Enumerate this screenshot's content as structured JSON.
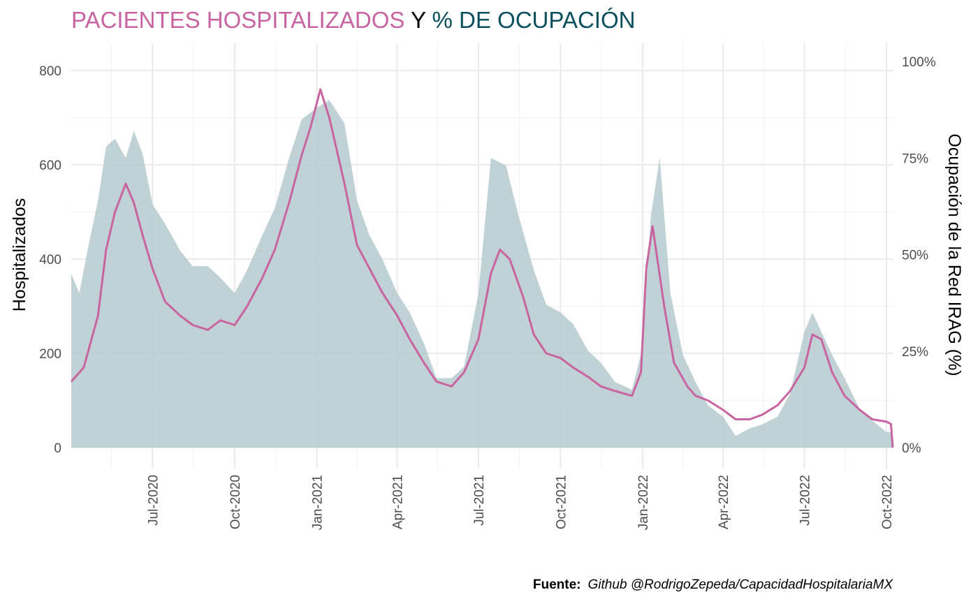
{
  "title": {
    "part1": "PACIENTES HOSPITALIZADOS",
    "part2": " Y ",
    "part3": "% DE OCUPACIÓN",
    "color1": "#c865a1",
    "color2": "#000000",
    "color3": "#0a4f5c"
  },
  "caption": {
    "label": "Fuente:",
    "text": "Github @RodrigoZepeda/CapacidadHospitalariaMX"
  },
  "chart_data": {
    "type": "line",
    "background_type": "area",
    "ylabel": "Hospitalizados",
    "y2label": "Ocupación de la Red IRAG (%)",
    "ylim": [
      0,
      800
    ],
    "y2lim": [
      0,
      1
    ],
    "yticks": [
      0,
      200,
      400,
      600,
      800
    ],
    "y2ticks": [
      "0%",
      "25%",
      "50%",
      "75%",
      "100%"
    ],
    "xlim": [
      "2020-04-01",
      "2022-10-08"
    ],
    "xticks": [
      "2020-07-01",
      "2020-10-01",
      "2021-01-01",
      "2021-04-01",
      "2021-07-01",
      "2021-10-01",
      "2022-01-01",
      "2022-04-01",
      "2022-07-01",
      "2022-10-01"
    ],
    "xtick_labels": [
      "Jul-2020",
      "Oct-2020",
      "Jan-2021",
      "Apr-2021",
      "Jul-2021",
      "Oct-2021",
      "Jan-2022",
      "Apr-2022",
      "Jul-2022",
      "Oct-2022"
    ],
    "grid": true,
    "legend": "none",
    "line_color": "#c865a1",
    "area_color": "#b5cacf",
    "series": [
      {
        "name": "Hospitalizados",
        "axis": "left",
        "x": [
          "2020-04-01",
          "2020-04-15",
          "2020-05-01",
          "2020-05-10",
          "2020-05-20",
          "2020-06-01",
          "2020-06-10",
          "2020-06-20",
          "2020-07-01",
          "2020-07-15",
          "2020-08-01",
          "2020-08-15",
          "2020-09-01",
          "2020-09-15",
          "2020-10-01",
          "2020-10-15",
          "2020-11-01",
          "2020-11-15",
          "2020-12-01",
          "2020-12-15",
          "2020-12-25",
          "2021-01-05",
          "2021-01-15",
          "2021-02-01",
          "2021-02-15",
          "2021-03-01",
          "2021-03-15",
          "2021-04-01",
          "2021-04-15",
          "2021-05-01",
          "2021-05-15",
          "2021-06-01",
          "2021-06-15",
          "2021-07-01",
          "2021-07-15",
          "2021-07-25",
          "2021-08-05",
          "2021-08-20",
          "2021-09-01",
          "2021-09-15",
          "2021-10-01",
          "2021-10-15",
          "2021-11-01",
          "2021-11-15",
          "2021-12-01",
          "2021-12-20",
          "2021-12-30",
          "2022-01-05",
          "2022-01-12",
          "2022-01-25",
          "2022-02-05",
          "2022-02-20",
          "2022-03-01",
          "2022-03-15",
          "2022-04-01",
          "2022-04-15",
          "2022-05-01",
          "2022-05-15",
          "2022-06-01",
          "2022-06-15",
          "2022-07-01",
          "2022-07-10",
          "2022-07-20",
          "2022-08-01",
          "2022-08-15",
          "2022-09-01",
          "2022-09-15",
          "2022-10-01",
          "2022-10-06",
          "2022-10-08"
        ],
        "values": [
          140,
          170,
          280,
          420,
          500,
          560,
          520,
          450,
          380,
          310,
          280,
          260,
          250,
          270,
          260,
          300,
          360,
          420,
          520,
          620,
          680,
          760,
          700,
          560,
          430,
          380,
          330,
          280,
          230,
          180,
          140,
          130,
          160,
          230,
          370,
          420,
          400,
          320,
          240,
          200,
          190,
          170,
          150,
          130,
          120,
          110,
          160,
          380,
          470,
          300,
          180,
          130,
          110,
          100,
          80,
          60,
          60,
          70,
          90,
          120,
          170,
          240,
          230,
          160,
          110,
          80,
          60,
          55,
          50,
          0
        ]
      },
      {
        "name": "Ocupación de la Red IRAG",
        "axis": "right",
        "x": [
          "2020-04-01",
          "2020-04-10",
          "2020-04-20",
          "2020-05-01",
          "2020-05-10",
          "2020-05-20",
          "2020-06-01",
          "2020-06-10",
          "2020-06-20",
          "2020-07-01",
          "2020-07-15",
          "2020-08-01",
          "2020-08-15",
          "2020-09-01",
          "2020-09-15",
          "2020-10-01",
          "2020-10-15",
          "2020-11-01",
          "2020-11-15",
          "2020-12-01",
          "2020-12-15",
          "2021-01-01",
          "2021-01-15",
          "2021-02-01",
          "2021-02-15",
          "2021-03-01",
          "2021-03-15",
          "2021-04-01",
          "2021-04-15",
          "2021-05-01",
          "2021-05-15",
          "2021-06-01",
          "2021-06-15",
          "2021-07-01",
          "2021-07-15",
          "2021-08-01",
          "2021-08-15",
          "2021-09-01",
          "2021-09-15",
          "2021-10-01",
          "2021-10-15",
          "2021-11-01",
          "2021-11-15",
          "2021-12-01",
          "2021-12-20",
          "2022-01-01",
          "2022-01-10",
          "2022-01-20",
          "2022-02-01",
          "2022-02-15",
          "2022-03-01",
          "2022-03-15",
          "2022-04-01",
          "2022-04-15",
          "2022-05-01",
          "2022-05-15",
          "2022-06-01",
          "2022-06-15",
          "2022-07-01",
          "2022-07-10",
          "2022-07-20",
          "2022-08-01",
          "2022-08-15",
          "2022-09-01",
          "2022-09-15",
          "2022-10-01",
          "2022-10-07"
        ],
        "values": [
          0.45,
          0.4,
          0.52,
          0.64,
          0.78,
          0.8,
          0.75,
          0.82,
          0.76,
          0.63,
          0.58,
          0.51,
          0.47,
          0.47,
          0.44,
          0.4,
          0.46,
          0.55,
          0.62,
          0.75,
          0.85,
          0.88,
          0.9,
          0.84,
          0.64,
          0.55,
          0.49,
          0.4,
          0.35,
          0.27,
          0.18,
          0.18,
          0.21,
          0.4,
          0.75,
          0.73,
          0.6,
          0.46,
          0.37,
          0.35,
          0.32,
          0.25,
          0.22,
          0.17,
          0.15,
          0.26,
          0.6,
          0.75,
          0.4,
          0.24,
          0.17,
          0.11,
          0.08,
          0.03,
          0.05,
          0.06,
          0.08,
          0.14,
          0.3,
          0.35,
          0.3,
          0.24,
          0.18,
          0.1,
          0.07,
          0.04,
          0.04
        ]
      }
    ]
  }
}
